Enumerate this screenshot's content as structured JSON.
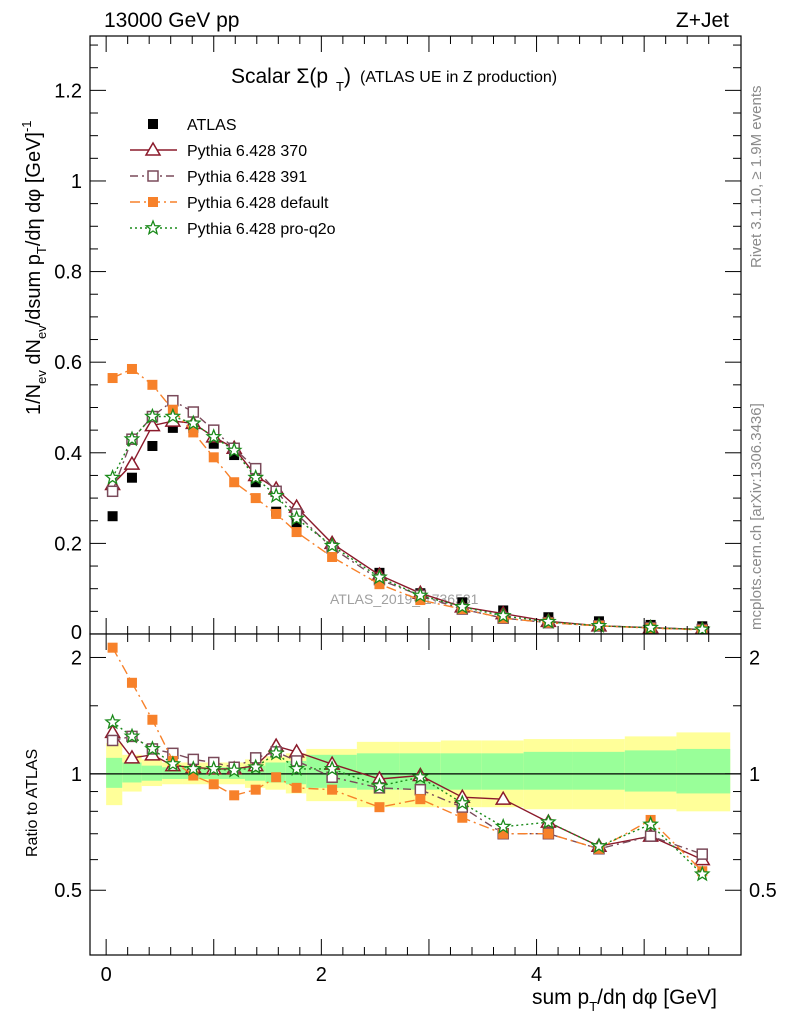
{
  "header": {
    "left": "13000 GeV pp",
    "right": "Z+Jet"
  },
  "side_labels": {
    "rivet": "Rivet 3.1.10, ≥ 1.9M events",
    "mcplots": "mcplots.cern.ch [arXiv:1306.3436]"
  },
  "watermark": "ATLAS_2019_I1736531",
  "colors": {
    "atlas": "#000000",
    "p370": "#8b1a2b",
    "p391": "#7a4a5a",
    "pdefault": "#f7812a",
    "pq2o": "#1a8a1a",
    "band_inner": "#99ff99",
    "band_outer": "#ffff99"
  },
  "chart_data": [
    {
      "type": "line",
      "title": "Scalar Σ(p_T) (ATLAS UE in Z production)",
      "xlabel": "sum p_T/dη dφ [GeV]",
      "ylabel": "1/N_ev dN_ev/dsum p_T/dη dφ [GeV]^-1",
      "xlim": [
        -0.15,
        5.9
      ],
      "ylim": [
        0,
        1.32
      ],
      "x_ticks": [
        0,
        2,
        4
      ],
      "y_ticks": [
        0.2,
        0.4,
        0.6,
        0.8,
        1,
        1.2
      ],
      "legend_position": "top-left",
      "x": [
        0.06,
        0.24,
        0.43,
        0.62,
        0.81,
        1.0,
        1.19,
        1.39,
        1.58,
        1.77,
        2.1,
        2.54,
        2.92,
        3.31,
        3.69,
        4.11,
        4.58,
        5.06,
        5.54
      ],
      "series": [
        {
          "name": "ATLAS",
          "key": "atlas",
          "marker": "square-filled",
          "dash": "none",
          "values": [
            0.26,
            0.345,
            0.415,
            0.455,
            0.455,
            0.42,
            0.395,
            0.335,
            0.27,
            0.245,
            0.19,
            0.135,
            0.09,
            0.07,
            0.052,
            0.037,
            0.028,
            0.02,
            0.017
          ]
        },
        {
          "name": "Pythia 6.428 370",
          "key": "p370",
          "marker": "triangle-open",
          "dash": "none",
          "values": [
            0.33,
            0.375,
            0.46,
            0.47,
            0.465,
            0.435,
            0.41,
            0.35,
            0.32,
            0.28,
            0.2,
            0.13,
            0.09,
            0.06,
            0.045,
            0.028,
            0.018,
            0.014,
            0.01
          ]
        },
        {
          "name": "Pythia 6.428 391",
          "key": "p391",
          "marker": "square-open",
          "dash": "8,4,2,4",
          "values": [
            0.315,
            0.43,
            0.48,
            0.515,
            0.49,
            0.45,
            0.41,
            0.365,
            0.315,
            0.265,
            0.19,
            0.12,
            0.085,
            0.055,
            0.035,
            0.025,
            0.018,
            0.014,
            0.01
          ]
        },
        {
          "name": "Pythia 6.428 default",
          "key": "pdefault",
          "marker": "square-filled",
          "dash": "10,4,2,4",
          "values": [
            0.565,
            0.585,
            0.55,
            0.495,
            0.445,
            0.39,
            0.335,
            0.3,
            0.265,
            0.225,
            0.17,
            0.11,
            0.075,
            0.055,
            0.035,
            0.025,
            0.018,
            0.013,
            0.009
          ]
        },
        {
          "name": "Pythia 6.428 pro-q2o",
          "key": "pq2o",
          "marker": "star-open",
          "dash": "2,3",
          "values": [
            0.345,
            0.43,
            0.48,
            0.48,
            0.465,
            0.435,
            0.405,
            0.345,
            0.305,
            0.255,
            0.195,
            0.125,
            0.085,
            0.06,
            0.04,
            0.027,
            0.018,
            0.014,
            0.01
          ]
        }
      ]
    },
    {
      "type": "line",
      "ylabel": "Ratio to ATLAS",
      "xlabel": "sum p_T/dη dφ [GeV]",
      "xlim": [
        -0.15,
        5.9
      ],
      "ylim": [
        0.34,
        2.3
      ],
      "y_ticks": [
        0.5,
        1,
        2
      ],
      "reference_line": 1,
      "band_edges": [
        0.0,
        0.15,
        0.33,
        0.52,
        0.71,
        0.9,
        1.1,
        1.29,
        1.48,
        1.67,
        1.86,
        2.33,
        2.73,
        3.11,
        3.49,
        3.88,
        4.33,
        4.82,
        5.3,
        5.8
      ],
      "band_inner": [
        [
          0.92,
          1.1
        ],
        [
          0.95,
          1.07
        ],
        [
          0.96,
          1.05
        ],
        [
          0.97,
          1.04
        ],
        [
          0.97,
          1.04
        ],
        [
          0.97,
          1.04
        ],
        [
          0.97,
          1.04
        ],
        [
          0.96,
          1.05
        ],
        [
          0.95,
          1.07
        ],
        [
          0.94,
          1.08
        ],
        [
          0.92,
          1.12
        ],
        [
          0.91,
          1.13
        ],
        [
          0.91,
          1.13
        ],
        [
          0.91,
          1.13
        ],
        [
          0.91,
          1.13
        ],
        [
          0.91,
          1.14
        ],
        [
          0.91,
          1.14
        ],
        [
          0.9,
          1.15
        ],
        [
          0.89,
          1.16
        ]
      ],
      "band_outer": [
        [
          0.83,
          1.2
        ],
        [
          0.9,
          1.12
        ],
        [
          0.93,
          1.09
        ],
        [
          0.94,
          1.07
        ],
        [
          0.94,
          1.07
        ],
        [
          0.94,
          1.07
        ],
        [
          0.94,
          1.07
        ],
        [
          0.92,
          1.09
        ],
        [
          0.91,
          1.11
        ],
        [
          0.89,
          1.13
        ],
        [
          0.85,
          1.16
        ],
        [
          0.82,
          1.21
        ],
        [
          0.82,
          1.21
        ],
        [
          0.82,
          1.22
        ],
        [
          0.82,
          1.22
        ],
        [
          0.81,
          1.23
        ],
        [
          0.81,
          1.23
        ],
        [
          0.81,
          1.25
        ],
        [
          0.8,
          1.28
        ]
      ],
      "x": [
        0.06,
        0.24,
        0.43,
        0.62,
        0.81,
        1.0,
        1.19,
        1.39,
        1.58,
        1.77,
        2.1,
        2.54,
        2.92,
        3.31,
        3.69,
        4.11,
        4.58,
        5.06,
        5.54
      ],
      "series": [
        {
          "name": "Pythia 6.428 370",
          "key": "p370",
          "marker": "triangle-open",
          "dash": "none",
          "values": [
            1.28,
            1.1,
            1.12,
            1.05,
            1.04,
            1.03,
            1.03,
            1.05,
            1.18,
            1.14,
            1.06,
            0.97,
            0.99,
            0.87,
            0.86,
            0.75,
            0.65,
            0.69,
            0.6
          ]
        },
        {
          "name": "Pythia 6.428 391",
          "key": "p391",
          "marker": "square-open",
          "dash": "8,4,2,4",
          "values": [
            1.22,
            1.25,
            1.16,
            1.13,
            1.09,
            1.07,
            1.04,
            1.1,
            1.14,
            1.08,
            0.98,
            0.92,
            0.91,
            0.82,
            0.7,
            0.7,
            0.64,
            0.69,
            0.62
          ]
        },
        {
          "name": "Pythia 6.428 default",
          "key": "pdefault",
          "marker": "square-filled",
          "dash": "10,4,2,4",
          "values": [
            2.12,
            1.72,
            1.38,
            1.08,
            0.99,
            0.94,
            0.88,
            0.91,
            0.98,
            0.92,
            0.91,
            0.82,
            0.86,
            0.77,
            0.7,
            0.7,
            0.64,
            0.76,
            0.56
          ]
        },
        {
          "name": "Pythia 6.428 pro-q2o",
          "key": "pq2o",
          "marker": "star-open",
          "dash": "2,3",
          "values": [
            1.36,
            1.25,
            1.16,
            1.06,
            1.03,
            1.03,
            1.02,
            1.04,
            1.13,
            1.03,
            1.03,
            0.93,
            0.98,
            0.84,
            0.73,
            0.75,
            0.65,
            0.74,
            0.55
          ]
        }
      ]
    }
  ]
}
